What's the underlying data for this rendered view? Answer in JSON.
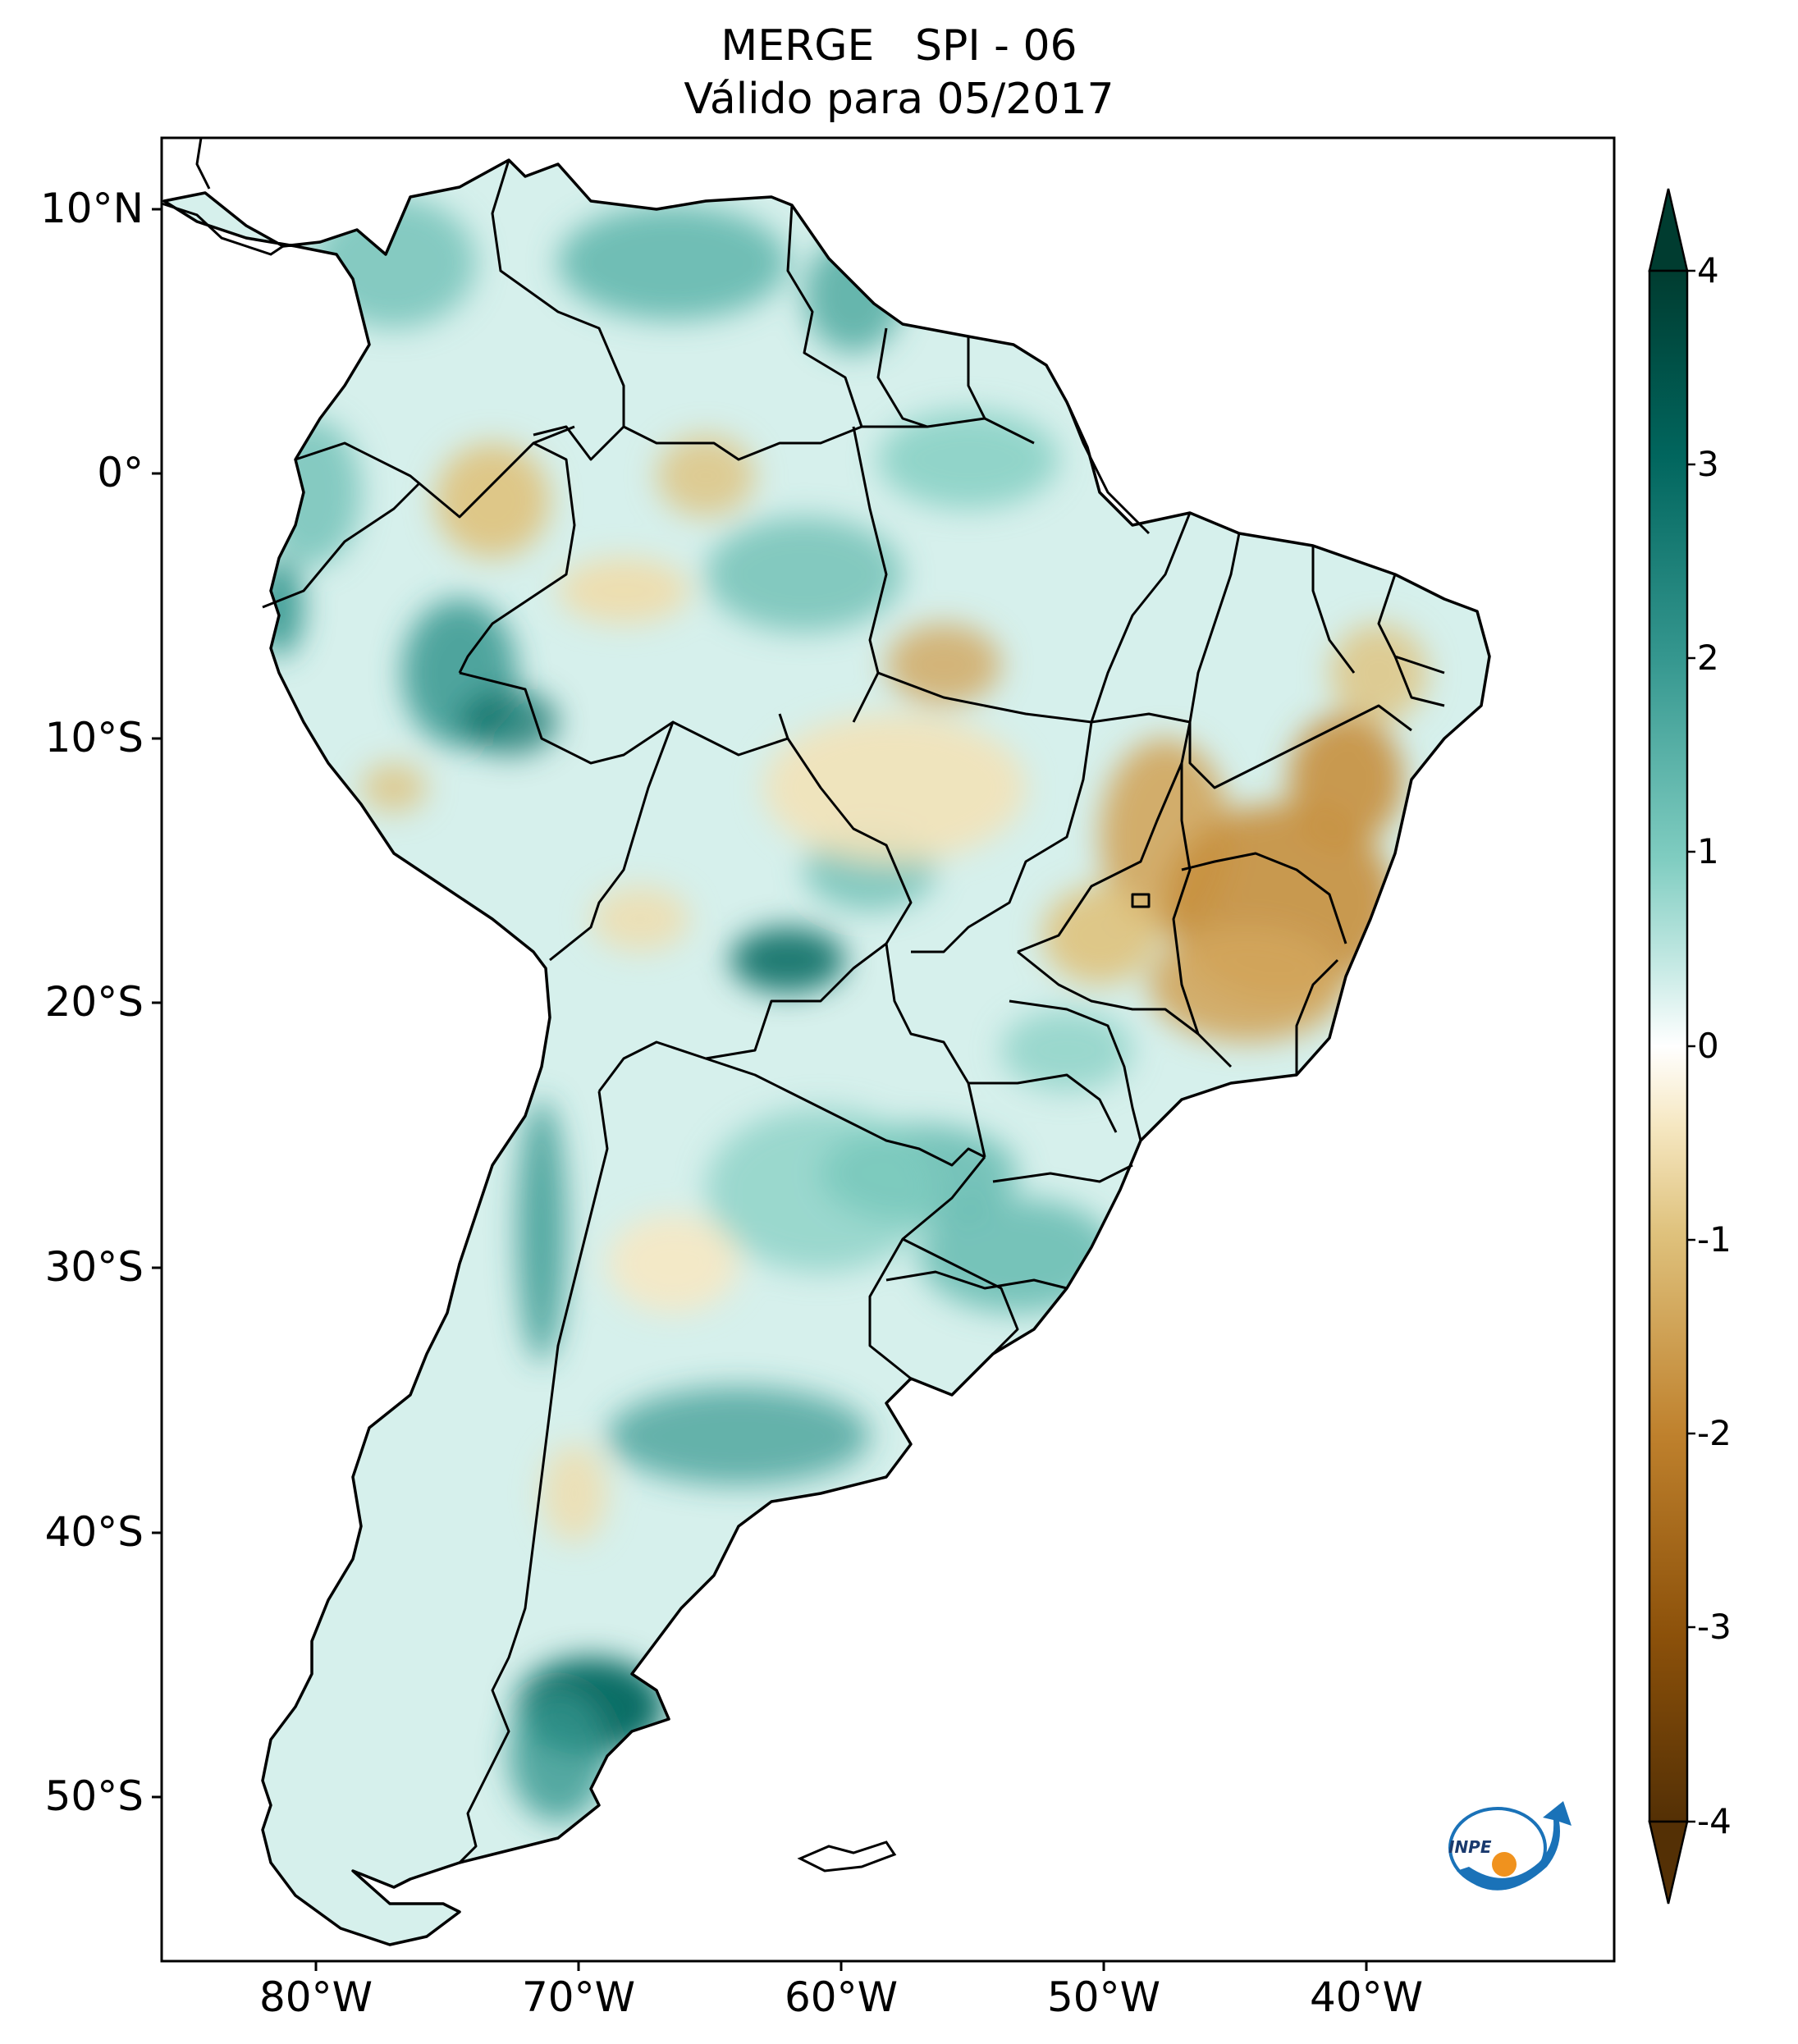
{
  "title": {
    "line1": "MERGE   SPI - 06",
    "line2": "Válido para 05/2017"
  },
  "axes": {
    "lat_labels": [
      "10°N",
      "0°",
      "10°S",
      "20°S",
      "30°S",
      "40°S",
      "50°S"
    ],
    "lon_labels": [
      "80°W",
      "70°W",
      "60°W",
      "50°W",
      "40°W"
    ]
  },
  "colorbar": {
    "ticks": [
      "4",
      "3",
      "2",
      "1",
      "0",
      "-1",
      "-2",
      "-3",
      "-4"
    ],
    "colors": {
      "wet_max": "#003c30",
      "wet_mid": "#35978f",
      "wet_low": "#c7eae5",
      "neutral": "#ffffff",
      "dry_low": "#f6e8c3",
      "dry_mid": "#bf812d",
      "dry_max": "#543005"
    }
  },
  "logo": {
    "text": "INPE"
  }
}
